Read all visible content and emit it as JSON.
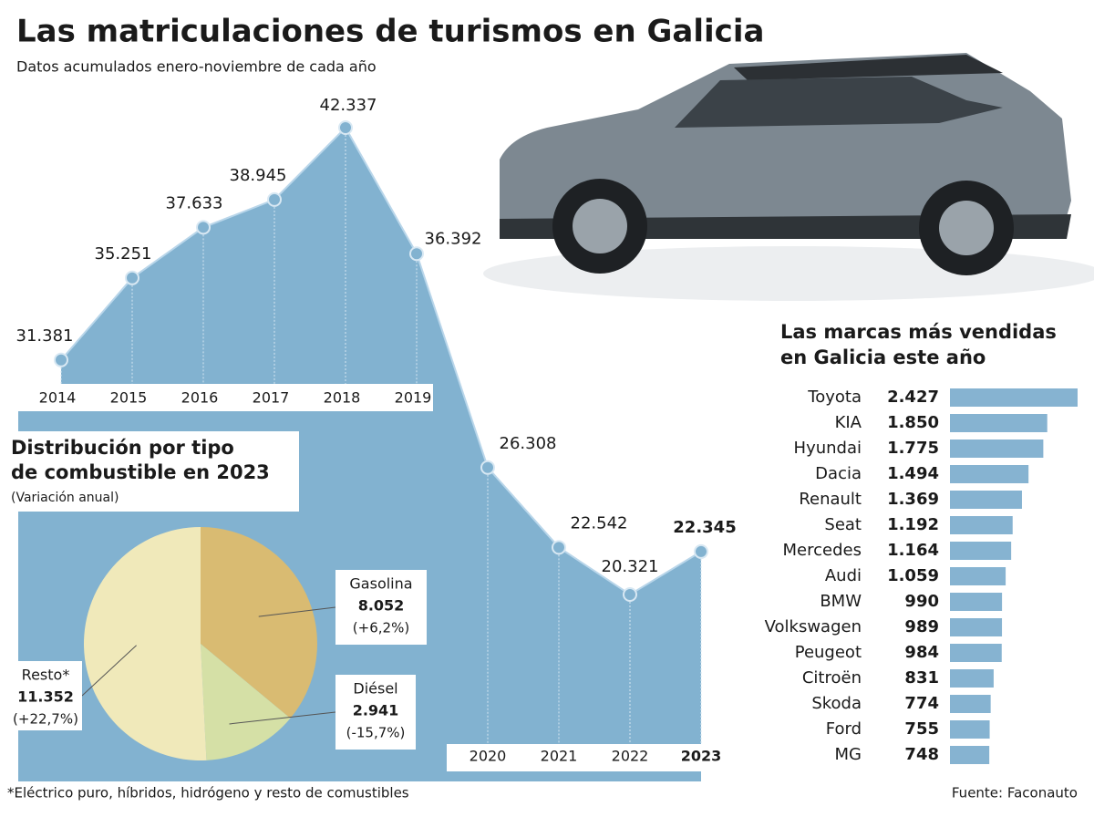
{
  "title": "Las matriculaciones de turismos en Galicia",
  "subtitle": "Datos acumulados enero-noviembre de cada año",
  "footnote": "*Eléctrico puro, híbridos, hidrógeno y resto de comustibles",
  "source": "Fuente: Faconauto",
  "chart_data": [
    {
      "type": "area",
      "categories": [
        "2014",
        "2015",
        "2016",
        "2017",
        "2018",
        "2019",
        "2020",
        "2021",
        "2022",
        "2023"
      ],
      "values": [
        31381,
        35251,
        37633,
        38945,
        42337,
        36392,
        26308,
        22542,
        20321,
        22345
      ],
      "value_labels": [
        "31.381",
        "35.251",
        "37.633",
        "38.945",
        "42.337",
        "36.392",
        "26.308",
        "22.542",
        "20.321",
        "22.345"
      ],
      "color": "#82b2d0"
    },
    {
      "type": "pie",
      "title": "Distribución por tipo de combustible en 2023",
      "subtitle": "(Variación anual)",
      "categories": [
        "Gasolina",
        "Diésel",
        "Resto*"
      ],
      "values": [
        8052,
        2941,
        11352
      ],
      "value_labels": [
        "8.052",
        "2.941",
        "11.352"
      ],
      "annotations": [
        "(+6,2%)",
        "(-15,7%)",
        "(+22,7%)"
      ],
      "colors": [
        "#d9bb72",
        "#d5e0a6",
        "#f0e9ba"
      ]
    },
    {
      "type": "hbar",
      "title": "Las marcas más vendidas en Galicia este año",
      "categories": [
        "Toyota",
        "KIA",
        "Hyundai",
        "Dacia",
        "Renault",
        "Seat",
        "Mercedes",
        "Audi",
        "BMW",
        "Volkswagen",
        "Peugeot",
        "Citroën",
        "Skoda",
        "Ford",
        "MG"
      ],
      "values": [
        2427,
        1850,
        1775,
        1494,
        1369,
        1192,
        1164,
        1059,
        990,
        989,
        984,
        831,
        774,
        755,
        748
      ],
      "value_labels": [
        "2.427",
        "1.850",
        "1.775",
        "1.494",
        "1.369",
        "1.192",
        "1.164",
        "1.059",
        "990",
        "989",
        "984",
        "831",
        "774",
        "755",
        "748"
      ],
      "color": "#86b3d1"
    }
  ]
}
